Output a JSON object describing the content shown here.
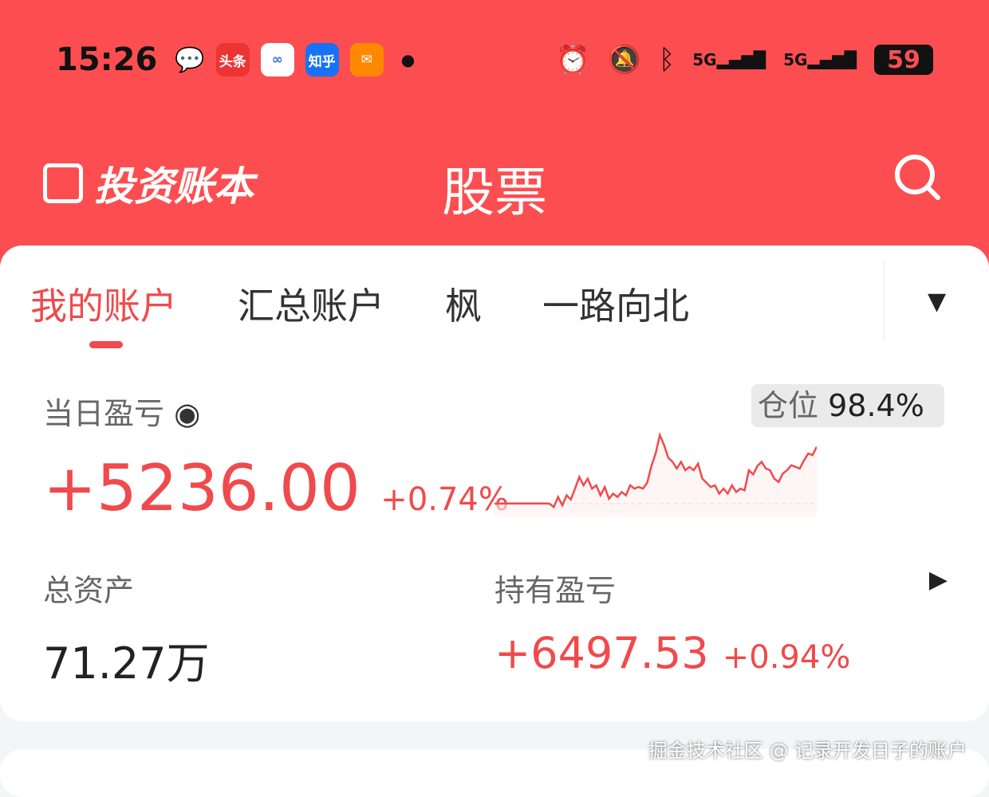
{
  "status_bar": {
    "time": "15:26",
    "apps": [
      "头条",
      "知乎"
    ],
    "battery": "59",
    "network": [
      "5G",
      "5G"
    ]
  },
  "header": {
    "logo_text": "投资账本",
    "title": "股票",
    "search_icon": "search-icon"
  },
  "tabs": [
    {
      "label": "我的账户",
      "active": true
    },
    {
      "label": "汇总账户"
    },
    {
      "label": "枫"
    },
    {
      "label": "一路向北"
    }
  ],
  "daily": {
    "label": "当日盈亏",
    "value": "+5236.00",
    "pct": "+0.74%"
  },
  "position": {
    "label": "仓位",
    "value": "98.4%"
  },
  "sparkline": {
    "color": "#f04a4c",
    "values": [
      0,
      0,
      0.3,
      0.3,
      0.3,
      0.3,
      0.3,
      0.3,
      0.3,
      0.3,
      0.3,
      0.3,
      0.3,
      0,
      -4,
      8,
      -2,
      10,
      5,
      18,
      32,
      22,
      30,
      18,
      22,
      10,
      20,
      6,
      12,
      8,
      14,
      10,
      22,
      18,
      20,
      18,
      25,
      45,
      60,
      82,
      70,
      55,
      50,
      42,
      50,
      40,
      44,
      40,
      48,
      30,
      25,
      20,
      22,
      12,
      18,
      12,
      22,
      14,
      18,
      16,
      40,
      35,
      45,
      50,
      42,
      40,
      30,
      26,
      36,
      40,
      46,
      44,
      42,
      52,
      60,
      58,
      68
    ]
  },
  "total_assets": {
    "label": "总资产",
    "value": "71.27万"
  },
  "holding": {
    "label": "持有盈亏",
    "value": "+6497.53",
    "pct": "+0.94%"
  },
  "watermark": "掘金技术社区 @ 记录开发日子的账户"
}
